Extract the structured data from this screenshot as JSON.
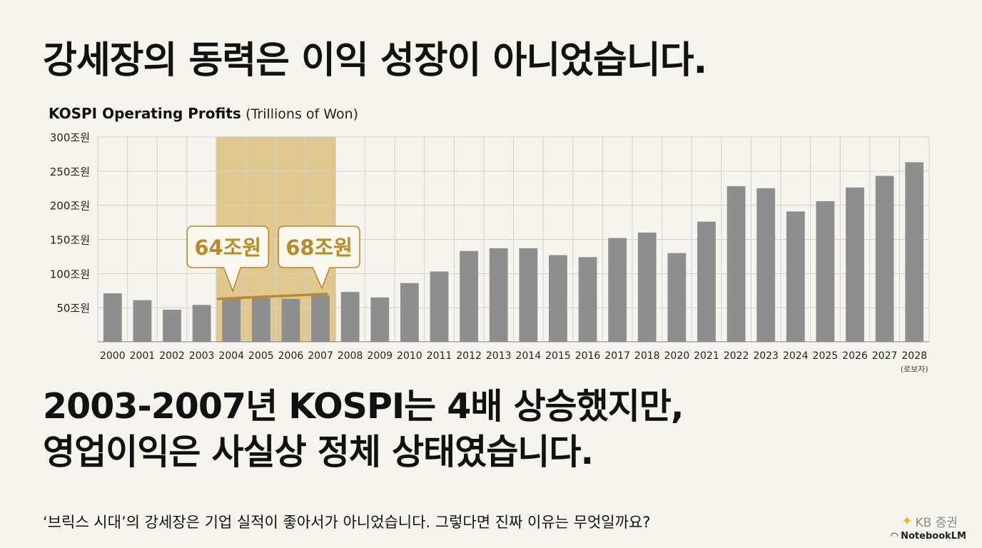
{
  "headline": "강세장의 동력은 이익 성장이 아니었습니다.",
  "chart_title_bold": "KOSPI Operating Profits",
  "chart_title_unit": "(Trillions of Won)",
  "sub_headline": {
    "line1": "2003-2007년 KOSPI는 4배 상승했지만,",
    "line2": "영업이익은 사실상 정체 상태였습니다."
  },
  "caption": "‘브릭스 시대’의 강세장은 기업 실적이 좋아서가 아니었습니다. 그렇다면 진짜 이유는 무엇일까요?",
  "brand": {
    "mark": "✦",
    "name": "KB 증권",
    "notebook": "NotebookLM",
    "notebook_icon": "notebook-icon"
  },
  "chart_data": {
    "type": "bar",
    "title": "KOSPI Operating Profits (Trillions of Won)",
    "categories": [
      "2000",
      "2001",
      "2002",
      "2003",
      "2004",
      "2005",
      "2006",
      "2007",
      "2008",
      "2009",
      "2010",
      "2011",
      "2012",
      "2013",
      "2014",
      "2015",
      "2016",
      "2017",
      "2018",
      "2020",
      "2021",
      "2022",
      "2023",
      "2024",
      "2025",
      "2026",
      "2027",
      "2028"
    ],
    "values": [
      71,
      61,
      47,
      54,
      64,
      64,
      63,
      68,
      73,
      65,
      86,
      103,
      133,
      137,
      137,
      127,
      124,
      152,
      160,
      130,
      176,
      228,
      225,
      191,
      206,
      226,
      243,
      263
    ],
    "y_ticks": [
      50,
      100,
      150,
      200,
      250,
      300
    ],
    "y_tick_labels": [
      "50조원",
      "100조원",
      "150조원",
      "200조원",
      "250조원",
      "300조원"
    ],
    "ylim": [
      0,
      300
    ],
    "grid": true,
    "note_last": "(로보자)",
    "highlight": {
      "from": "2004",
      "to": "2007"
    },
    "callouts": [
      {
        "category": "2004",
        "label": "64조원"
      },
      {
        "category": "2007",
        "label": "68조원"
      }
    ],
    "colors": {
      "bar": "#8e8e8e",
      "highlight": "#d8b96f",
      "accent": "#b88a2a",
      "grid": "#d2d2d2"
    }
  }
}
